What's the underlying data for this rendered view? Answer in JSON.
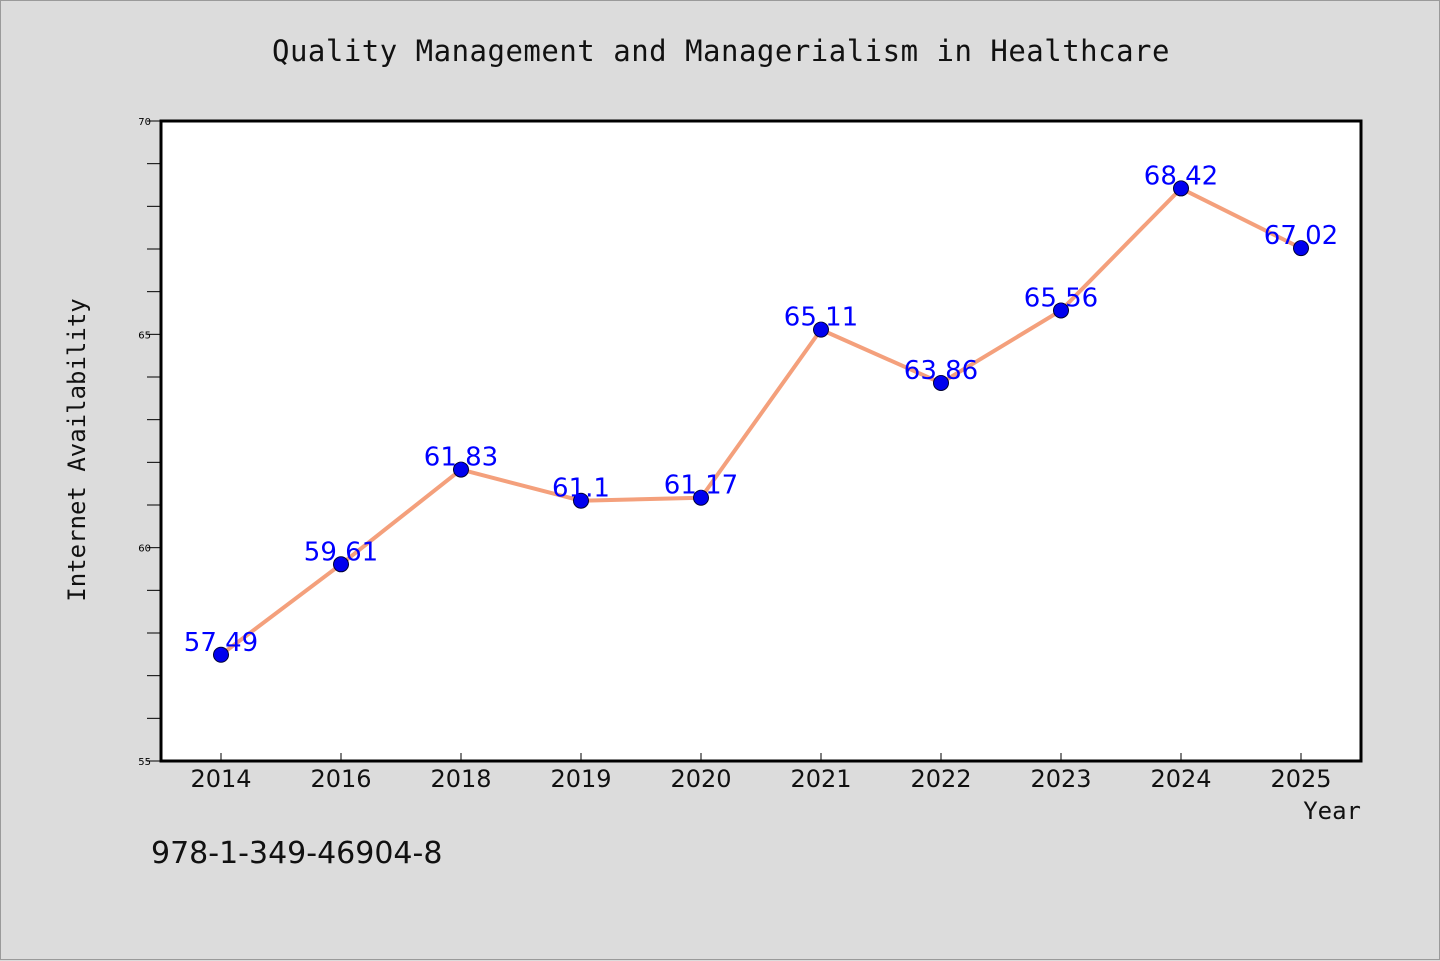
{
  "chart_data": {
    "type": "line",
    "title": "Quality Management and Managerialism in Healthcare",
    "xlabel": "Year",
    "ylabel": "Internet Availability",
    "categories": [
      "2014",
      "2016",
      "2018",
      "2019",
      "2020",
      "2021",
      "2022",
      "2023",
      "2024",
      "2025"
    ],
    "values": [
      57.49,
      59.61,
      61.83,
      61.1,
      61.17,
      65.11,
      63.86,
      65.56,
      68.42,
      67.02
    ],
    "value_labels": [
      "57.49",
      "59.61",
      "61.83",
      "61.1",
      "61.17",
      "65.11",
      "63.86",
      "65.56",
      "68.42",
      "67.02"
    ],
    "ylim": [
      55,
      70
    ],
    "yticks": [
      55,
      60,
      65,
      70
    ],
    "ytick_labels": [
      "55",
      "60",
      "65",
      "70"
    ],
    "grid": false,
    "line_color": "#f4a07c",
    "marker_color": "#0000ee",
    "label_color": "#0000ff"
  },
  "footer": {
    "isbn": "978-1-349-46904-8"
  }
}
